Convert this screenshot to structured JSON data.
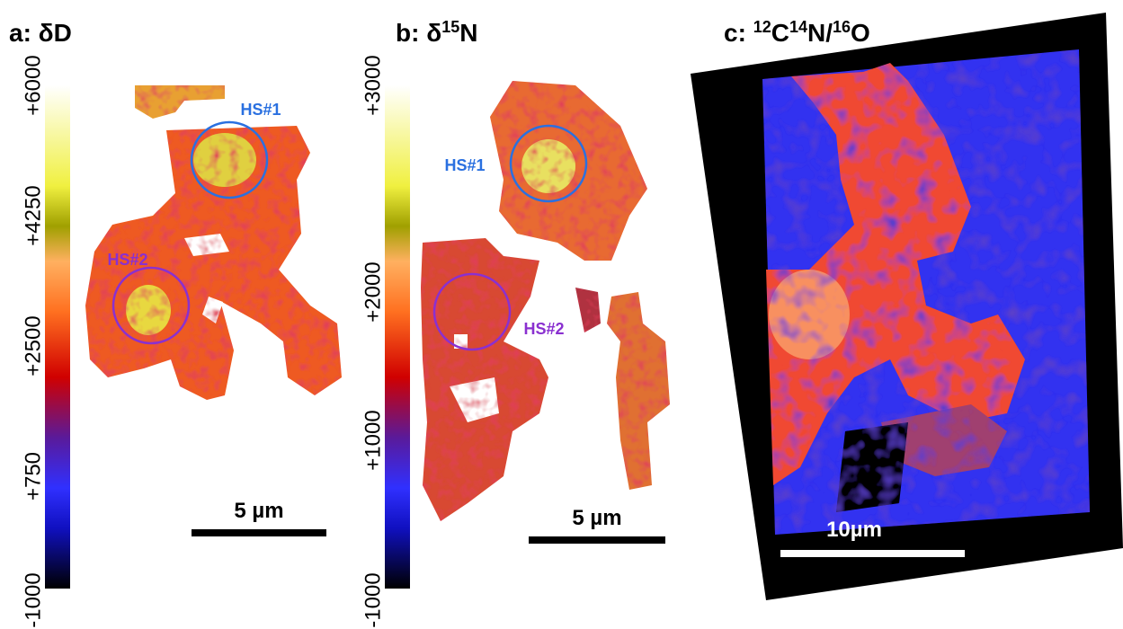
{
  "panels": [
    {
      "title": {
        "prefix": "a: δD"
      },
      "colorbar_ticks": [
        "+6000",
        "+4250",
        "+2500",
        "+750",
        "-1000"
      ],
      "labels": [
        "HS#1",
        "HS#2"
      ],
      "scale_bar": "5 µm"
    },
    {
      "title": {
        "prefix": "b: δ",
        "sup": "15",
        "suffix": "N"
      },
      "colorbar_ticks": [
        "+3000",
        "+2000",
        "+1000",
        "-1000"
      ],
      "labels": [
        "HS#1",
        "HS#2"
      ],
      "scale_bar": "5 µm"
    },
    {
      "title": {
        "sup1": "12",
        "mid1": "C",
        "sup2": "14",
        "mid2": "N/",
        "sup3": "16",
        "suffix": "O",
        "prefix": "c: "
      },
      "scale_bar": "10µm"
    }
  ]
}
